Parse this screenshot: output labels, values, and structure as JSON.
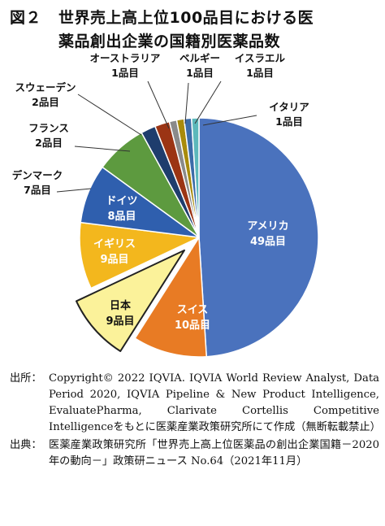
{
  "figure": {
    "label": "図２",
    "title_line1": "世界売上高上位100品目における医",
    "title_line2": "薬品創出企業の国籍別医薬品数"
  },
  "chart_data": {
    "type": "pie",
    "title": "世界売上高上位100品目における医薬品創出企業の国籍別医薬品数",
    "unit": "品目",
    "highlighted": "日本",
    "slices": [
      {
        "name": "アメリカ",
        "value": 49,
        "value_label": "49品目",
        "color": "#4a72bd"
      },
      {
        "name": "スイス",
        "value": 10,
        "value_label": "10品目",
        "color": "#e87b24"
      },
      {
        "name": "日本",
        "value": 9,
        "value_label": "9品目",
        "color": "#fbf29a"
      },
      {
        "name": "イギリス",
        "value": 9,
        "value_label": "9品目",
        "color": "#f3b71d"
      },
      {
        "name": "ドイツ",
        "value": 8,
        "value_label": "8品目",
        "color": "#2f5fae"
      },
      {
        "name": "デンマーク",
        "value": 7,
        "value_label": "7品目",
        "color": "#5d9a3f"
      },
      {
        "name": "フランス",
        "value": 2,
        "value_label": "2品目",
        "color": "#1e3d6d"
      },
      {
        "name": "スウェーデン",
        "value": 2,
        "value_label": "2品目",
        "color": "#9b3414"
      },
      {
        "name": "オーストラリア",
        "value": 1,
        "value_label": "1品目",
        "color": "#8a8a8a"
      },
      {
        "name": "ベルギー",
        "value": 1,
        "value_label": "1品目",
        "color": "#a88b0c"
      },
      {
        "name": "イスラエル",
        "value": 1,
        "value_label": "1品目",
        "color": "#3c6ca8"
      },
      {
        "name": "イタリア",
        "value": 1,
        "value_label": "1品目",
        "color": "#5cb8bb"
      }
    ]
  },
  "source": {
    "credit_head": "出所：",
    "credit_text": "Copyright© 2022 IQVIA. IQVIA World Review Analyst, Data Period 2020, IQVIA Pipeline & New Product Intelligence, EvaluatePharma, Clarivate Cortellis Competitive Intelligenceをもとに医薬産業政策研究所にて作成（無断転載禁止）",
    "ref_head": "出典：",
    "ref_text": "医薬産業政策研究所「世界売上高上位医薬品の創出企業国籍－2020年の動向－」政策研ニュース No.64（2021年11月）"
  }
}
